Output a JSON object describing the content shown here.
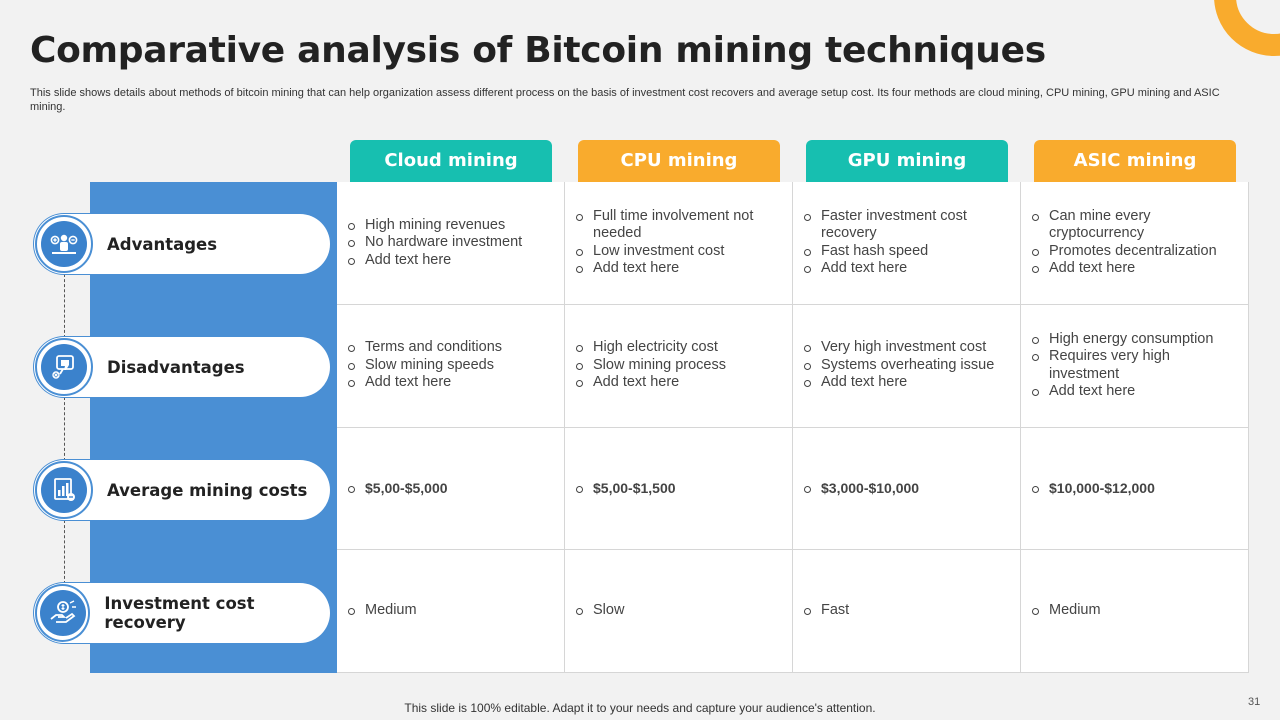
{
  "title": "Comparative analysis of Bitcoin mining techniques",
  "subtitle": "This slide shows details about methods of bitcoin mining that can help organization assess different process on the basis of investment cost recovers and average setup cost. Its four methods are cloud mining, CPU mining, GPU mining and ASIC mining.",
  "columns": [
    {
      "label": "Cloud mining",
      "color": "#17bfb0"
    },
    {
      "label": "CPU mining",
      "color": "#f9ab2d"
    },
    {
      "label": "GPU mining",
      "color": "#17bfb0"
    },
    {
      "label": "ASIC mining",
      "color": "#f9ab2d"
    }
  ],
  "rows": [
    {
      "label": "Advantages",
      "icon": "group-balance-icon"
    },
    {
      "label": "Disadvantages",
      "icon": "thumbs-down-icon"
    },
    {
      "label": "Average mining costs",
      "icon": "cost-chart-icon"
    },
    {
      "label": "Investment cost recovery",
      "icon": "hand-money-icon"
    }
  ],
  "cells": [
    [
      [
        "High mining revenues",
        "No hardware investment",
        "Add text here"
      ],
      [
        "Full time involvement not needed",
        "Low investment cost",
        "Add text here"
      ],
      [
        "Faster investment cost recovery",
        "Fast hash speed",
        "Add text here"
      ],
      [
        "Can mine every cryptocurrency",
        "Promotes decentralization",
        "Add text here"
      ]
    ],
    [
      [
        "Terms and conditions",
        "Slow mining speeds",
        "Add text here"
      ],
      [
        "High electricity cost",
        "Slow mining process",
        "Add text here"
      ],
      [
        "Very high investment cost",
        "Systems overheating issue",
        "Add text here"
      ],
      [
        "High energy consumption",
        "Requires very high investment",
        "Add text here"
      ]
    ],
    [
      [
        "$5,00-$5,000"
      ],
      [
        "$5,00-$1,500"
      ],
      [
        "$3,000-$10,000"
      ],
      [
        "$10,000-$12,000"
      ]
    ],
    [
      [
        "Medium"
      ],
      [
        "Slow"
      ],
      [
        "Fast"
      ],
      [
        "Medium"
      ]
    ]
  ],
  "footer": "This slide is 100% editable. Adapt it to your needs and capture your audience's attention.",
  "page_number": "31",
  "colors": {
    "accent_blue": "#4a8fd4",
    "teal": "#17bfb0",
    "orange": "#f9ab2d"
  }
}
